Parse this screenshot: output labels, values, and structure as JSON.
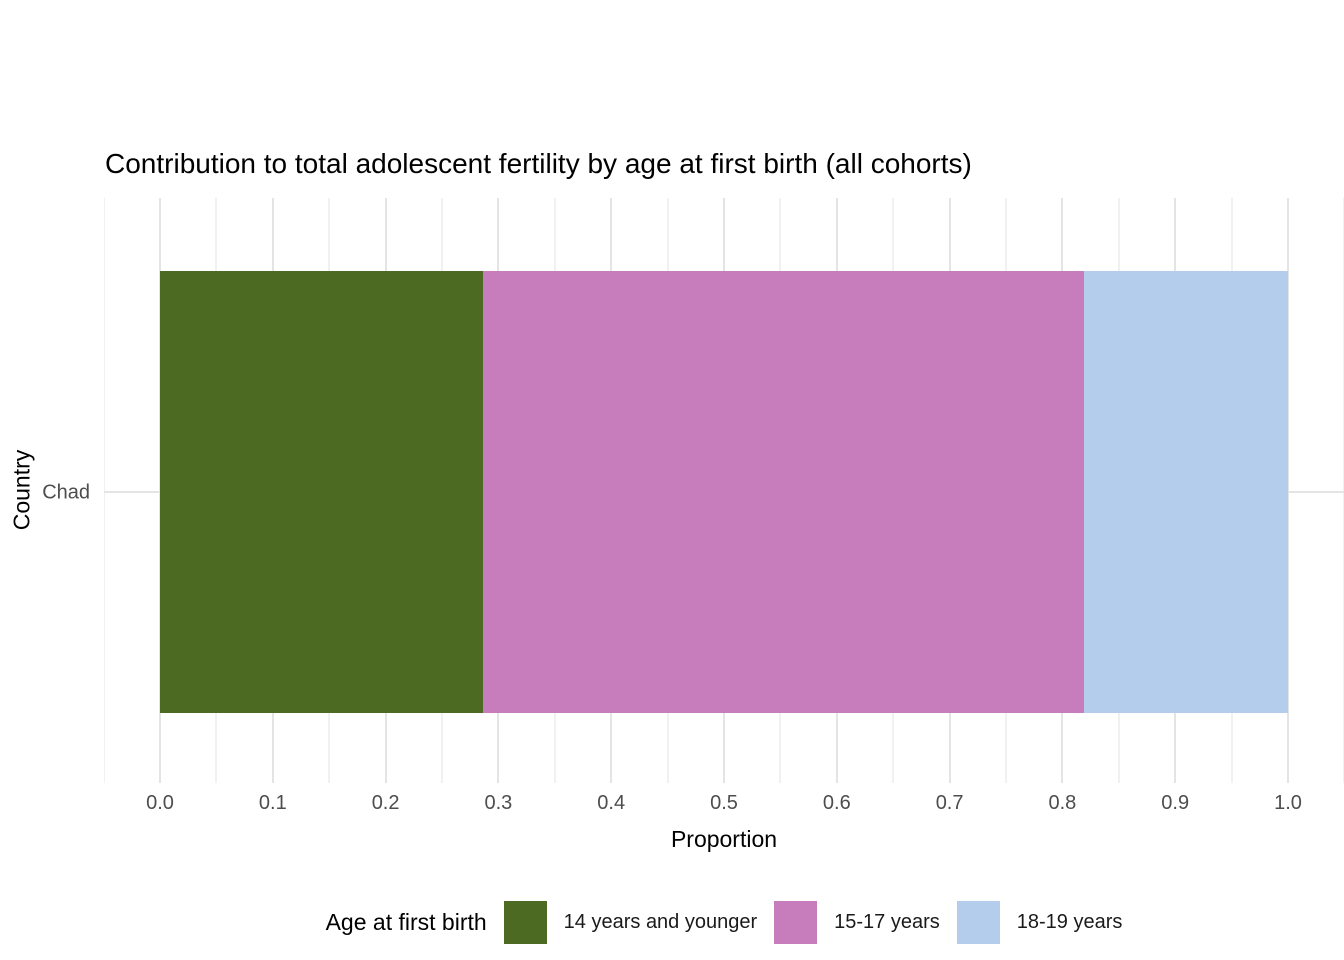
{
  "chart_data": {
    "type": "bar",
    "orientation": "horizontal",
    "stacked": true,
    "title": "Contribution to total adolescent fertility by age at first birth (all cohorts)",
    "xlabel": "Proportion",
    "ylabel": "Country",
    "categories": [
      "Chad"
    ],
    "series": [
      {
        "name": "14 years and younger",
        "values": [
          0.286
        ],
        "color": "#4C6A21"
      },
      {
        "name": "15-17 years",
        "values": [
          0.533
        ],
        "color": "#C77CBB"
      },
      {
        "name": "18-19 years",
        "values": [
          0.181
        ],
        "color": "#B5CDEC"
      }
    ],
    "xlim": [
      0,
      1
    ],
    "x_ticks": [
      0,
      0.1,
      0.2,
      0.3,
      0.4,
      0.5,
      0.6,
      0.7,
      0.8,
      0.9,
      1.0
    ],
    "x_tick_labels": [
      "0.0",
      "0.1",
      "0.2",
      "0.3",
      "0.4",
      "0.5",
      "0.6",
      "0.7",
      "0.8",
      "0.9",
      "1.0"
    ],
    "grid": {
      "on": true,
      "minor_step": 0.05
    },
    "legend": {
      "title": "Age at first birth",
      "position": "bottom"
    }
  }
}
